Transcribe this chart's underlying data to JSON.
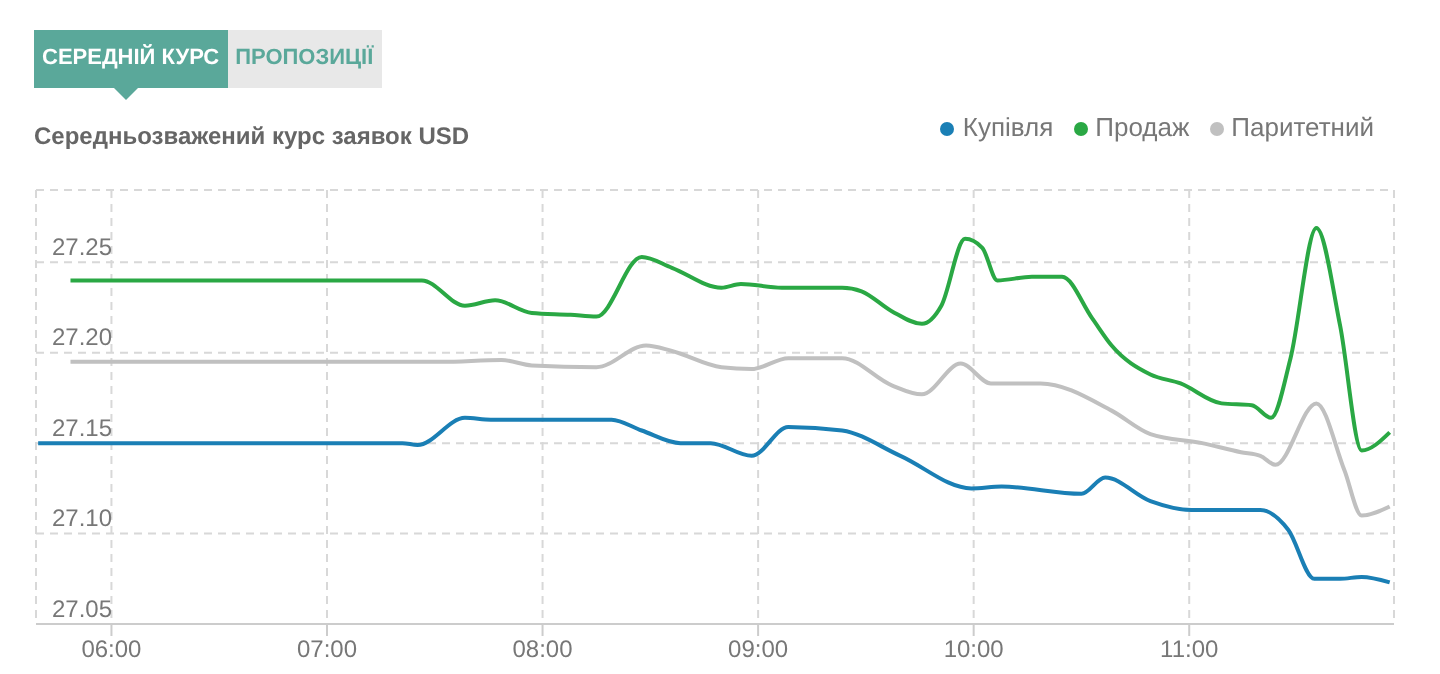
{
  "chart_data": {
    "type": "line",
    "title": "Середньозважений курс заявок USD",
    "annotations": [
      "СЕРЕДНІЙ КУРС",
      "ПРОПОЗИЦІЇ"
    ],
    "xlim": [
      5.65,
      11.95
    ],
    "xticks": [
      {
        "value": 6,
        "label": "06:00"
      },
      {
        "value": 7,
        "label": "07:00"
      },
      {
        "value": 8,
        "label": "08:00"
      },
      {
        "value": 9,
        "label": "09:00"
      },
      {
        "value": 10,
        "label": "10:00"
      },
      {
        "value": 11,
        "label": "11:00"
      }
    ],
    "ylim": [
      27.05,
      27.29
    ],
    "yticks": [
      27.05,
      {
        "value": 27.1,
        "label": "27.10"
      },
      27.15,
      {
        "value": 27.2,
        "label": "27.20"
      },
      27.25
    ],
    "grid": true,
    "legend": "top right",
    "marker": "none",
    "line_style": "solid",
    "series": [
      {
        "name": "Купівля",
        "color": "#1a7fb5",
        "x": [
          5.66,
          7.35,
          7.42,
          7.64,
          7.76,
          8.32,
          8.46,
          8.64,
          8.78,
          8.97,
          9.14,
          9.39,
          9.66,
          9.99,
          10.13,
          10.5,
          10.61,
          10.82,
          11.01,
          11.33,
          11.46,
          11.58,
          11.7,
          11.8,
          11.93
        ],
        "values": [
          27.15,
          27.15,
          27.149,
          27.164,
          27.163,
          27.163,
          27.157,
          27.15,
          27.15,
          27.143,
          27.159,
          27.157,
          27.143,
          27.125,
          27.126,
          27.122,
          27.131,
          27.118,
          27.113,
          27.113,
          27.102,
          27.075,
          27.075,
          27.076,
          27.073
        ]
      },
      {
        "name": "Продаж",
        "color": "#2aa844",
        "x": [
          5.81,
          7.37,
          7.44,
          7.64,
          7.78,
          7.95,
          8.13,
          8.25,
          8.46,
          8.6,
          8.83,
          8.92,
          9.11,
          9.39,
          9.48,
          9.62,
          9.76,
          9.85,
          9.96,
          10.04,
          10.11,
          10.27,
          10.41,
          10.55,
          10.64,
          10.82,
          10.96,
          11.15,
          11.29,
          11.38,
          11.47,
          11.59,
          11.7,
          11.8,
          11.93
        ],
        "values": [
          27.24,
          27.24,
          27.24,
          27.226,
          27.229,
          27.222,
          27.221,
          27.22,
          27.253,
          27.247,
          27.236,
          27.238,
          27.236,
          27.236,
          27.234,
          27.223,
          27.216,
          27.226,
          27.263,
          27.258,
          27.24,
          27.242,
          27.242,
          27.219,
          27.204,
          27.188,
          27.183,
          27.172,
          27.171,
          27.164,
          27.197,
          27.269,
          27.215,
          27.146,
          27.156
        ]
      },
      {
        "name": "Паритетний",
        "color": "#c0c0c0",
        "x": [
          5.81,
          7.53,
          7.81,
          7.95,
          8.25,
          8.48,
          8.6,
          8.83,
          8.97,
          9.14,
          9.39,
          9.62,
          9.76,
          9.94,
          10.08,
          10.31,
          10.64,
          10.82,
          11.06,
          11.24,
          11.33,
          11.4,
          11.59,
          11.72,
          11.8,
          11.93
        ],
        "values": [
          27.195,
          27.195,
          27.196,
          27.193,
          27.192,
          27.204,
          27.201,
          27.192,
          27.191,
          27.197,
          27.197,
          27.182,
          27.177,
          27.194,
          27.183,
          27.183,
          27.168,
          27.155,
          27.15,
          27.145,
          27.143,
          27.138,
          27.172,
          27.135,
          27.11,
          27.115
        ]
      }
    ]
  }
}
